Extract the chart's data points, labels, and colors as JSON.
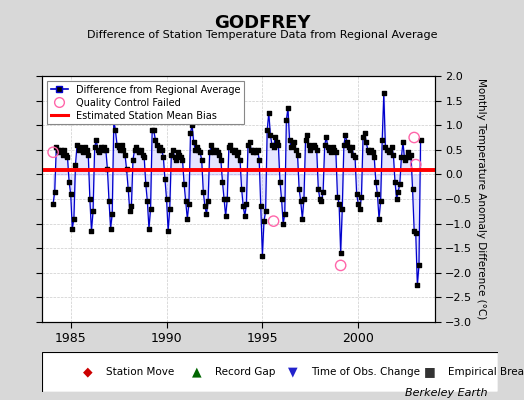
{
  "title": "GODFREY",
  "subtitle": "Difference of Station Temperature Data from Regional Average",
  "ylabel": "Monthly Temperature Anomaly Difference (°C)",
  "credit": "Berkeley Earth",
  "xlim": [
    1983.5,
    2004.0
  ],
  "ylim": [
    -3,
    2
  ],
  "yticks": [
    -3,
    -2.5,
    -2,
    -1.5,
    -1,
    -0.5,
    0,
    0.5,
    1,
    1.5,
    2
  ],
  "xticks": [
    1985,
    1990,
    1995,
    2000
  ],
  "bias_value": 0.08,
  "bias_color": "#ff0000",
  "line_color": "#0000cc",
  "line_fill_color": "#9999ff",
  "dot_color": "#000000",
  "qc_color": "#ff66aa",
  "bg_color": "#d8d8d8",
  "plot_bg": "#ffffff",
  "grid_color": "#cccccc",
  "time_series": [
    [
      1984.083,
      -0.6
    ],
    [
      1984.167,
      -0.35
    ],
    [
      1984.25,
      0.55
    ],
    [
      1984.333,
      0.5
    ],
    [
      1984.417,
      0.45
    ],
    [
      1984.5,
      0.5
    ],
    [
      1984.583,
      0.4
    ],
    [
      1984.667,
      0.5
    ],
    [
      1984.75,
      0.4
    ],
    [
      1984.833,
      0.35
    ],
    [
      1984.917,
      -0.15
    ],
    [
      1985.0,
      -0.4
    ],
    [
      1985.083,
      -1.1
    ],
    [
      1985.167,
      -0.9
    ],
    [
      1985.25,
      0.2
    ],
    [
      1985.333,
      0.6
    ],
    [
      1985.417,
      0.5
    ],
    [
      1985.5,
      0.55
    ],
    [
      1985.583,
      0.5
    ],
    [
      1985.667,
      0.45
    ],
    [
      1985.75,
      0.55
    ],
    [
      1985.833,
      0.5
    ],
    [
      1985.917,
      0.4
    ],
    [
      1986.0,
      -0.5
    ],
    [
      1986.083,
      -1.15
    ],
    [
      1986.167,
      -0.75
    ],
    [
      1986.25,
      0.55
    ],
    [
      1986.333,
      0.7
    ],
    [
      1986.417,
      0.5
    ],
    [
      1986.5,
      0.45
    ],
    [
      1986.583,
      0.55
    ],
    [
      1986.667,
      0.5
    ],
    [
      1986.75,
      0.55
    ],
    [
      1986.833,
      0.5
    ],
    [
      1986.917,
      0.1
    ],
    [
      1987.0,
      -0.55
    ],
    [
      1987.083,
      -1.1
    ],
    [
      1987.167,
      -0.8
    ],
    [
      1987.25,
      1.1
    ],
    [
      1987.333,
      0.9
    ],
    [
      1987.417,
      0.6
    ],
    [
      1987.5,
      0.55
    ],
    [
      1987.583,
      0.5
    ],
    [
      1987.667,
      0.6
    ],
    [
      1987.75,
      0.5
    ],
    [
      1987.833,
      0.4
    ],
    [
      1987.917,
      0.1
    ],
    [
      1988.0,
      -0.3
    ],
    [
      1988.083,
      -0.75
    ],
    [
      1988.167,
      -0.65
    ],
    [
      1988.25,
      0.3
    ],
    [
      1988.333,
      0.5
    ],
    [
      1988.417,
      0.55
    ],
    [
      1988.5,
      0.5
    ],
    [
      1988.583,
      0.45
    ],
    [
      1988.667,
      0.5
    ],
    [
      1988.75,
      0.4
    ],
    [
      1988.833,
      0.35
    ],
    [
      1988.917,
      -0.2
    ],
    [
      1989.0,
      -0.55
    ],
    [
      1989.083,
      -1.1
    ],
    [
      1989.167,
      -0.7
    ],
    [
      1989.25,
      0.9
    ],
    [
      1989.333,
      0.9
    ],
    [
      1989.417,
      0.7
    ],
    [
      1989.5,
      0.6
    ],
    [
      1989.583,
      0.5
    ],
    [
      1989.667,
      0.55
    ],
    [
      1989.75,
      0.5
    ],
    [
      1989.833,
      0.35
    ],
    [
      1989.917,
      -0.1
    ],
    [
      1990.0,
      -0.5
    ],
    [
      1990.083,
      -1.15
    ],
    [
      1990.167,
      -0.7
    ],
    [
      1990.25,
      0.4
    ],
    [
      1990.333,
      0.5
    ],
    [
      1990.417,
      0.35
    ],
    [
      1990.5,
      0.3
    ],
    [
      1990.583,
      0.45
    ],
    [
      1990.667,
      0.4
    ],
    [
      1990.75,
      0.35
    ],
    [
      1990.833,
      0.3
    ],
    [
      1990.917,
      -0.2
    ],
    [
      1991.0,
      -0.55
    ],
    [
      1991.083,
      -0.9
    ],
    [
      1991.167,
      -0.6
    ],
    [
      1991.25,
      0.85
    ],
    [
      1991.333,
      1.0
    ],
    [
      1991.417,
      0.65
    ],
    [
      1991.5,
      0.5
    ],
    [
      1991.583,
      0.55
    ],
    [
      1991.667,
      0.5
    ],
    [
      1991.75,
      0.45
    ],
    [
      1991.833,
      0.3
    ],
    [
      1991.917,
      -0.35
    ],
    [
      1992.0,
      -0.65
    ],
    [
      1992.083,
      -0.8
    ],
    [
      1992.167,
      -0.55
    ],
    [
      1992.25,
      0.45
    ],
    [
      1992.333,
      0.6
    ],
    [
      1992.417,
      0.5
    ],
    [
      1992.5,
      0.45
    ],
    [
      1992.583,
      0.5
    ],
    [
      1992.667,
      0.45
    ],
    [
      1992.75,
      0.4
    ],
    [
      1992.833,
      0.3
    ],
    [
      1992.917,
      -0.15
    ],
    [
      1993.0,
      -0.5
    ],
    [
      1993.083,
      -0.85
    ],
    [
      1993.167,
      -0.5
    ],
    [
      1993.25,
      0.55
    ],
    [
      1993.333,
      0.6
    ],
    [
      1993.417,
      0.5
    ],
    [
      1993.5,
      0.45
    ],
    [
      1993.583,
      0.5
    ],
    [
      1993.667,
      0.4
    ],
    [
      1993.75,
      0.45
    ],
    [
      1993.833,
      0.3
    ],
    [
      1993.917,
      -0.3
    ],
    [
      1994.0,
      -0.65
    ],
    [
      1994.083,
      -0.85
    ],
    [
      1994.167,
      -0.6
    ],
    [
      1994.25,
      0.6
    ],
    [
      1994.333,
      0.65
    ],
    [
      1994.417,
      0.5
    ],
    [
      1994.5,
      0.45
    ],
    [
      1994.583,
      0.5
    ],
    [
      1994.667,
      0.45
    ],
    [
      1994.75,
      0.5
    ],
    [
      1994.833,
      0.3
    ],
    [
      1994.917,
      -0.65
    ],
    [
      1995.0,
      -1.65
    ],
    [
      1995.083,
      -0.95
    ],
    [
      1995.167,
      -0.75
    ],
    [
      1995.25,
      0.9
    ],
    [
      1995.333,
      1.25
    ],
    [
      1995.417,
      0.8
    ],
    [
      1995.5,
      0.6
    ],
    [
      1995.583,
      0.55
    ],
    [
      1995.667,
      0.75
    ],
    [
      1995.75,
      0.65
    ],
    [
      1995.833,
      0.6
    ],
    [
      1995.917,
      -0.15
    ],
    [
      1996.0,
      -0.5
    ],
    [
      1996.083,
      -1.0
    ],
    [
      1996.167,
      -0.8
    ],
    [
      1996.25,
      1.1
    ],
    [
      1996.333,
      1.35
    ],
    [
      1996.417,
      0.7
    ],
    [
      1996.5,
      0.55
    ],
    [
      1996.583,
      0.6
    ],
    [
      1996.667,
      0.65
    ],
    [
      1996.75,
      0.5
    ],
    [
      1996.833,
      0.4
    ],
    [
      1996.917,
      -0.3
    ],
    [
      1997.0,
      -0.55
    ],
    [
      1997.083,
      -0.9
    ],
    [
      1997.167,
      -0.5
    ],
    [
      1997.25,
      0.7
    ],
    [
      1997.333,
      0.8
    ],
    [
      1997.417,
      0.6
    ],
    [
      1997.5,
      0.5
    ],
    [
      1997.583,
      0.55
    ],
    [
      1997.667,
      0.6
    ],
    [
      1997.75,
      0.55
    ],
    [
      1997.833,
      0.5
    ],
    [
      1997.917,
      -0.3
    ],
    [
      1998.0,
      -0.5
    ],
    [
      1998.083,
      -0.55
    ],
    [
      1998.167,
      -0.35
    ],
    [
      1998.25,
      0.6
    ],
    [
      1998.333,
      0.75
    ],
    [
      1998.417,
      0.55
    ],
    [
      1998.5,
      0.5
    ],
    [
      1998.583,
      0.45
    ],
    [
      1998.667,
      0.55
    ],
    [
      1998.75,
      0.5
    ],
    [
      1998.833,
      0.45
    ],
    [
      1998.917,
      -0.45
    ],
    [
      1999.0,
      -0.6
    ],
    [
      1999.083,
      -1.6
    ],
    [
      1999.167,
      -0.7
    ],
    [
      1999.25,
      0.6
    ],
    [
      1999.333,
      0.8
    ],
    [
      1999.417,
      0.65
    ],
    [
      1999.5,
      0.55
    ],
    [
      1999.583,
      0.5
    ],
    [
      1999.667,
      0.55
    ],
    [
      1999.75,
      0.4
    ],
    [
      1999.833,
      0.35
    ],
    [
      1999.917,
      -0.4
    ],
    [
      2000.0,
      -0.6
    ],
    [
      2000.083,
      -0.7
    ],
    [
      2000.167,
      -0.45
    ],
    [
      2000.25,
      0.75
    ],
    [
      2000.333,
      0.85
    ],
    [
      2000.417,
      0.65
    ],
    [
      2000.5,
      0.5
    ],
    [
      2000.583,
      0.45
    ],
    [
      2000.667,
      0.5
    ],
    [
      2000.75,
      0.45
    ],
    [
      2000.833,
      0.35
    ],
    [
      2000.917,
      -0.15
    ],
    [
      2001.0,
      -0.4
    ],
    [
      2001.083,
      -0.9
    ],
    [
      2001.167,
      -0.55
    ],
    [
      2001.25,
      0.7
    ],
    [
      2001.333,
      1.65
    ],
    [
      2001.417,
      0.55
    ],
    [
      2001.5,
      0.5
    ],
    [
      2001.583,
      0.45
    ],
    [
      2001.667,
      0.5
    ],
    [
      2001.75,
      0.55
    ],
    [
      2001.833,
      0.4
    ],
    [
      2001.917,
      -0.15
    ],
    [
      2002.0,
      -0.5
    ],
    [
      2002.083,
      -0.35
    ],
    [
      2002.167,
      -0.2
    ],
    [
      2002.25,
      0.35
    ],
    [
      2002.333,
      0.65
    ],
    [
      2002.417,
      0.3
    ],
    [
      2002.5,
      0.35
    ],
    [
      2002.583,
      0.45
    ],
    [
      2002.667,
      0.35
    ],
    [
      2002.75,
      0.4
    ],
    [
      2002.833,
      -0.3
    ],
    [
      2002.917,
      -1.15
    ],
    [
      2003.0,
      -1.2
    ],
    [
      2003.083,
      -2.25
    ],
    [
      2003.167,
      -1.85
    ],
    [
      2003.25,
      0.7
    ]
  ],
  "qc_failed_points": [
    [
      1984.083,
      0.45
    ],
    [
      1995.583,
      -0.95
    ],
    [
      1999.083,
      -1.85
    ],
    [
      2002.917,
      0.75
    ],
    [
      2003.0,
      0.2
    ]
  ]
}
